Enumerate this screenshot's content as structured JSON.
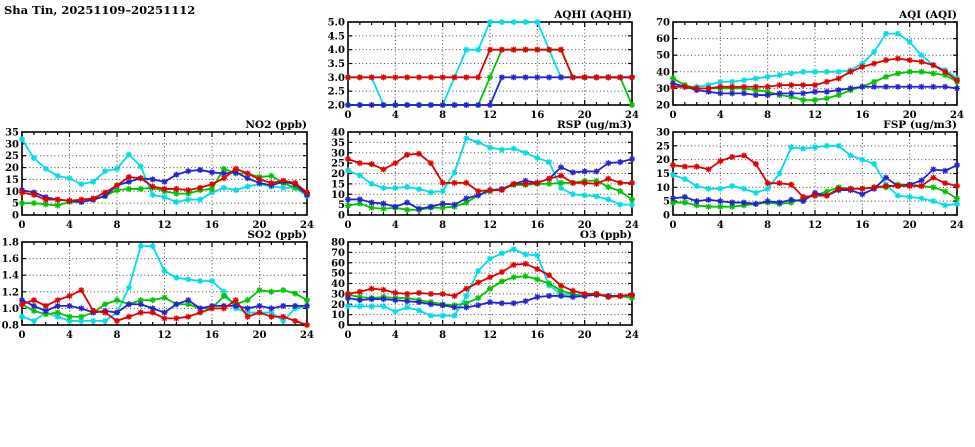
{
  "page": {
    "title": "Sha Tin, 20251109–20251112",
    "background": "#ffffff"
  },
  "series_colors": {
    "cyan": "#00dde8",
    "green": "#00c400",
    "blue": "#2424cc",
    "red": "#e00000"
  },
  "axis": {
    "xticks": [
      0,
      4,
      8,
      12,
      16,
      20,
      24
    ],
    "xtick_labels": [
      "0",
      "4",
      "8",
      "12",
      "16",
      "20",
      "24"
    ],
    "x_hours_per_point": 1
  },
  "chart_data": [
    {
      "id": "aqhi",
      "type": "line",
      "title": "AQHI (AQHI)",
      "ylim": [
        2.0,
        5.0
      ],
      "yticks": [
        2.0,
        2.5,
        3.0,
        3.5,
        4.0,
        4.5,
        5.0
      ],
      "ytick_labels": [
        "2.0",
        "2.5",
        "3.0",
        "3.5",
        "4.0",
        "4.5",
        "5.0"
      ],
      "series": [
        {
          "name": "cyan",
          "values": [
            3,
            3,
            3,
            2,
            2,
            2,
            2,
            2,
            2,
            3,
            4,
            4,
            5,
            5,
            5,
            5,
            5,
            4,
            3,
            3,
            3,
            3,
            3,
            3,
            3
          ]
        },
        {
          "name": "green",
          "values": [
            2,
            2,
            2,
            2,
            2,
            2,
            2,
            2,
            2,
            2,
            2,
            2,
            3,
            4,
            4,
            4,
            4,
            4,
            4,
            3,
            3,
            3,
            3,
            3,
            2
          ]
        },
        {
          "name": "blue",
          "values": [
            2,
            2,
            2,
            2,
            2,
            2,
            2,
            2,
            2,
            2,
            2,
            2,
            2,
            3,
            3,
            3,
            3,
            3,
            3,
            3,
            3,
            3,
            3,
            3,
            3
          ]
        },
        {
          "name": "red",
          "values": [
            3,
            3,
            3,
            3,
            3,
            3,
            3,
            3,
            3,
            3,
            3,
            3,
            4,
            4,
            4,
            4,
            4,
            4,
            4,
            3,
            3,
            3,
            3,
            3,
            3
          ]
        }
      ]
    },
    {
      "id": "aqi",
      "type": "line",
      "title": "AQI (AQI)",
      "ylim": [
        20,
        70
      ],
      "yticks": [
        20,
        30,
        40,
        50,
        60,
        70
      ],
      "ytick_labels": [
        "20",
        "30",
        "40",
        "50",
        "60",
        "70"
      ],
      "series": [
        {
          "name": "cyan",
          "values": [
            31,
            31,
            31,
            32,
            34,
            34,
            35,
            36,
            37,
            38,
            39,
            40,
            40,
            40,
            40,
            41,
            45,
            52,
            63,
            63,
            58,
            50,
            44,
            41,
            36
          ]
        },
        {
          "name": "green",
          "values": [
            36,
            32,
            30,
            30,
            30,
            30,
            30,
            29,
            28,
            26,
            25,
            23,
            23,
            24,
            26,
            29,
            31,
            34,
            37,
            39,
            40,
            40,
            39,
            38,
            34
          ]
        },
        {
          "name": "blue",
          "values": [
            33,
            31,
            29,
            28,
            27,
            27,
            27,
            26,
            26,
            27,
            27,
            27,
            28,
            28,
            29,
            30,
            31,
            31,
            31,
            31,
            31,
            31,
            31,
            31,
            30
          ]
        },
        {
          "name": "red",
          "values": [
            31,
            31,
            30,
            30,
            31,
            31,
            31,
            31,
            31,
            32,
            32,
            32,
            32,
            34,
            36,
            40,
            43,
            45,
            47,
            48,
            47,
            46,
            44,
            40,
            35
          ]
        }
      ]
    },
    {
      "id": "no2",
      "type": "line",
      "title": "NO2 (ppb)",
      "ylim": [
        0,
        35
      ],
      "yticks": [
        0,
        5,
        10,
        15,
        20,
        25,
        30,
        35
      ],
      "ytick_labels": [
        "0",
        "5",
        "10",
        "15",
        "20",
        "25",
        "30",
        "35"
      ],
      "series": [
        {
          "name": "cyan",
          "values": [
            32,
            24,
            19.5,
            16.5,
            15.5,
            13,
            14,
            18.5,
            19.5,
            25.5,
            20.5,
            8.5,
            7.5,
            5.5,
            6.5,
            6.5,
            9.5,
            11.5,
            10.5,
            12,
            13,
            12,
            11.5,
            11.5,
            8
          ]
        },
        {
          "name": "green",
          "values": [
            5,
            5,
            4.5,
            4,
            5.5,
            5.5,
            6.5,
            8,
            10.5,
            11,
            11,
            11.5,
            10,
            9,
            9,
            10.5,
            11,
            19.5,
            17.5,
            17.5,
            16,
            16.5,
            13.5,
            11.5,
            9
          ]
        },
        {
          "name": "blue",
          "values": [
            10.5,
            9.5,
            7.5,
            6.5,
            6,
            5.5,
            6.5,
            8,
            12.5,
            14,
            15.5,
            15,
            14,
            17,
            18.5,
            19,
            18,
            17.5,
            18,
            15.5,
            13.5,
            12.5,
            14,
            13,
            8.5
          ]
        },
        {
          "name": "red",
          "values": [
            9.5,
            8.5,
            6.5,
            6.5,
            6,
            6.5,
            7,
            9.5,
            12.5,
            16,
            15.5,
            12,
            11,
            11,
            10.5,
            11.5,
            13,
            15.5,
            19.5,
            17.5,
            15,
            13.5,
            14.5,
            13.5,
            9.5
          ]
        }
      ]
    },
    {
      "id": "rsp",
      "type": "line",
      "title": "RSP (ug/m3)",
      "ylim": [
        0,
        40
      ],
      "yticks": [
        0,
        5,
        10,
        15,
        20,
        25,
        30,
        35,
        40
      ],
      "ytick_labels": [
        "0",
        "5",
        "10",
        "15",
        "20",
        "25",
        "30",
        "35",
        "40"
      ],
      "series": [
        {
          "name": "cyan",
          "values": [
            21.5,
            19,
            15,
            13,
            13,
            13.5,
            12.5,
            11,
            11.5,
            20.5,
            37,
            35,
            32.5,
            31.5,
            32,
            30,
            27.5,
            25.5,
            13,
            10,
            9.5,
            9,
            7.5,
            5,
            5
          ]
        },
        {
          "name": "green",
          "values": [
            4.5,
            5.5,
            3.5,
            3,
            3.5,
            2.5,
            2.5,
            3.5,
            3.5,
            4,
            6,
            9.5,
            11.5,
            12.5,
            14.5,
            14.5,
            15,
            15,
            15.5,
            15.5,
            16.5,
            16.5,
            13.5,
            11.5,
            7.5
          ]
        },
        {
          "name": "blue",
          "values": [
            7.5,
            7.5,
            6,
            5.5,
            4,
            6,
            3,
            4,
            5.5,
            5,
            8,
            9.5,
            12,
            12.5,
            15,
            16.5,
            15.5,
            17.5,
            23,
            20.5,
            21,
            21,
            25,
            25.5,
            27
          ]
        },
        {
          "name": "red",
          "values": [
            27,
            25,
            24.5,
            22,
            25,
            29,
            29.5,
            25,
            15.5,
            15.5,
            15.5,
            11.5,
            12,
            12,
            15,
            15,
            15.5,
            17.5,
            19,
            15.5,
            15.5,
            15,
            17.5,
            15.5,
            15.5
          ]
        }
      ]
    },
    {
      "id": "fsp",
      "type": "line",
      "title": "FSP (ug/m3)",
      "ylim": [
        0,
        30
      ],
      "yticks": [
        0,
        5,
        10,
        15,
        20,
        25,
        30
      ],
      "ytick_labels": [
        "0",
        "5",
        "10",
        "15",
        "20",
        "25",
        "30"
      ],
      "series": [
        {
          "name": "cyan",
          "values": [
            14.5,
            13,
            10.5,
            9.5,
            9.5,
            10.5,
            9.5,
            8,
            9.5,
            15,
            24.5,
            24,
            24.5,
            25,
            25,
            21.5,
            20,
            18.5,
            11,
            7,
            6.5,
            6,
            5,
            3.5,
            4
          ]
        },
        {
          "name": "green",
          "values": [
            4.5,
            4.5,
            3.5,
            3,
            3,
            3,
            3.5,
            4,
            4.5,
            4,
            4.5,
            6,
            7,
            8.5,
            10,
            9.5,
            9.5,
            10,
            10,
            11,
            11,
            10.5,
            10,
            8.5,
            6
          ]
        },
        {
          "name": "blue",
          "values": [
            6,
            6.5,
            5,
            5.5,
            5,
            4.5,
            4.5,
            4,
            5,
            4.5,
            5.5,
            5,
            8,
            7,
            9,
            9,
            7.5,
            9.5,
            13.5,
            10.5,
            11,
            12.5,
            16.5,
            16,
            18
          ]
        },
        {
          "name": "red",
          "values": [
            18,
            17.5,
            17.5,
            16.5,
            19.5,
            21,
            21.5,
            18.5,
            11.5,
            11.5,
            11,
            6.5,
            7,
            7,
            9.5,
            9.5,
            9.5,
            10,
            10.5,
            10.5,
            10.5,
            10.5,
            13.5,
            11.5,
            10.5
          ]
        }
      ]
    },
    {
      "id": "so2",
      "type": "line",
      "title": "SO2 (ppb)",
      "ylim": [
        0.8,
        1.8
      ],
      "yticks": [
        0.8,
        1.0,
        1.2,
        1.4,
        1.6,
        1.8
      ],
      "ytick_labels": [
        "0.8",
        "1.0",
        "1.2",
        "1.4",
        "1.6",
        "1.8"
      ],
      "series": [
        {
          "name": "cyan",
          "values": [
            0.9,
            0.85,
            0.95,
            0.9,
            0.85,
            0.85,
            0.85,
            0.85,
            0.95,
            1.25,
            1.75,
            1.75,
            1.45,
            1.37,
            1.35,
            1.33,
            1.33,
            1.2,
            1.0,
            0.95,
            0.95,
            0.95,
            0.85,
            1.0,
            1.03
          ]
        },
        {
          "name": "green",
          "values": [
            1.05,
            0.97,
            0.93,
            0.95,
            0.9,
            0.9,
            0.95,
            1.05,
            1.1,
            1.05,
            1.1,
            1.1,
            1.13,
            1.05,
            1.05,
            1.0,
            1.0,
            1.15,
            1.05,
            1.1,
            1.22,
            1.2,
            1.22,
            1.18,
            1.1
          ]
        },
        {
          "name": "blue",
          "values": [
            1.1,
            1.03,
            0.97,
            1.03,
            1.03,
            1.0,
            0.95,
            0.97,
            0.95,
            1.05,
            1.05,
            1.0,
            0.95,
            1.05,
            1.1,
            1.0,
            1.03,
            1.03,
            1.03,
            1.0,
            1.03,
            1.0,
            1.03,
            1.03,
            1.03
          ]
        },
        {
          "name": "red",
          "values": [
            1.05,
            1.1,
            1.03,
            1.1,
            1.15,
            1.22,
            0.97,
            0.95,
            0.85,
            0.9,
            0.95,
            0.95,
            0.88,
            0.88,
            0.9,
            0.95,
            1.0,
            1.0,
            1.1,
            0.9,
            0.95,
            0.9,
            0.9,
            0.85,
            0.8
          ]
        }
      ]
    },
    {
      "id": "o3",
      "type": "line",
      "title": "O3 (ppb)",
      "ylim": [
        0,
        80
      ],
      "yticks": [
        0,
        10,
        20,
        30,
        40,
        50,
        60,
        70,
        80
      ],
      "ytick_labels": [
        "0",
        "10",
        "20",
        "30",
        "40",
        "50",
        "60",
        "70",
        "80"
      ],
      "series": [
        {
          "name": "cyan",
          "values": [
            18,
            18,
            18,
            18,
            13,
            17,
            14,
            9,
            9,
            9,
            28,
            52,
            64,
            69,
            73,
            68,
            67,
            38,
            30,
            29,
            28,
            30,
            27,
            28,
            28
          ]
        },
        {
          "name": "green",
          "values": [
            29,
            27,
            26,
            27,
            26,
            26,
            24,
            22,
            20,
            19,
            21,
            26,
            35,
            42,
            46,
            47,
            44,
            40,
            33,
            30,
            28,
            30,
            28,
            28,
            26
          ]
        },
        {
          "name": "blue",
          "values": [
            26,
            24,
            25,
            25,
            24,
            23,
            22,
            20,
            19,
            17,
            17,
            19,
            22,
            21,
            21,
            23,
            27,
            28,
            28,
            27,
            28,
            29,
            28,
            28,
            29
          ]
        },
        {
          "name": "red",
          "values": [
            30,
            32,
            35,
            34,
            31,
            30,
            31,
            30,
            30,
            28,
            35,
            41,
            46,
            51,
            58,
            59,
            54,
            48,
            38,
            33,
            30,
            30,
            27,
            28,
            29
          ]
        }
      ]
    }
  ]
}
